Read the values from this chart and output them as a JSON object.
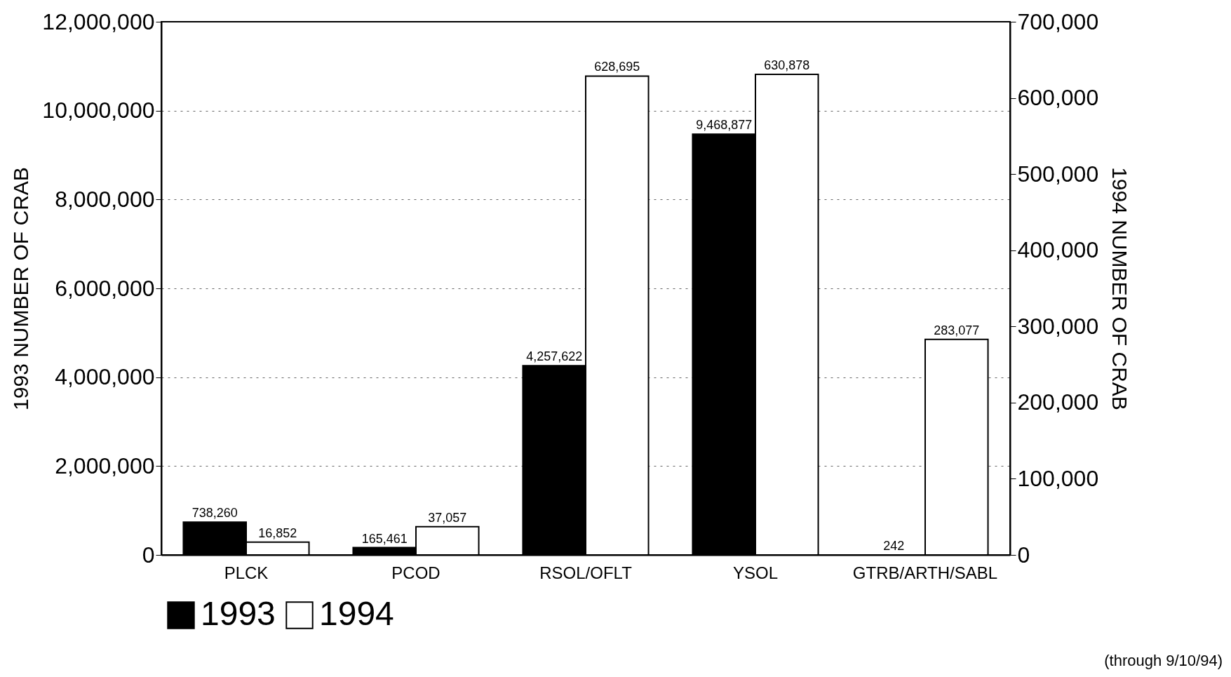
{
  "chart_data": {
    "type": "bar",
    "categories": [
      "PLCK",
      "PCOD",
      "RSOL/OFLT",
      "YSOL",
      "GTRB/ARTH/SABL"
    ],
    "series": [
      {
        "name": "1993",
        "color": "#000000",
        "values": [
          738260,
          165461,
          4257622,
          9468877,
          242
        ],
        "value_labels": [
          "738,260",
          "165,461",
          "4,257,622",
          "9,468,877",
          "242"
        ]
      },
      {
        "name": "1994",
        "color": "#ffffff",
        "values": [
          16852,
          37057,
          628695,
          630878,
          283077
        ],
        "value_labels": [
          "16,852",
          "37,057",
          "628,695",
          "630,878",
          "283,077"
        ],
        "axis": "y2"
      }
    ],
    "ylabel": "1993 NUMBER OF CRAB",
    "y2label": "1994 NUMBER OF CRAB",
    "ylim": [
      0,
      12000000
    ],
    "yticks": [
      0,
      {
        "value": 2000000,
        "label": "2,000,000"
      },
      {
        "value": 4000000,
        "label": "4,000,000"
      },
      {
        "value": 6000000,
        "label": "6,000,000"
      },
      {
        "value": 8000000,
        "label": "8,000,000"
      },
      {
        "value": 10000000,
        "label": "10,000,000"
      },
      {
        "value": 12000000,
        "label": "12,000,000"
      }
    ],
    "y2lim": [
      0,
      700000
    ],
    "y2ticks": [
      0,
      {
        "value": 100000,
        "label": "100,000"
      },
      {
        "value": 200000,
        "label": "200,000"
      },
      {
        "value": 300000,
        "label": "300,000"
      },
      {
        "value": 400000,
        "label": "400,000"
      },
      {
        "value": 500000,
        "label": "500,000"
      },
      {
        "value": 600000,
        "label": "600,000"
      },
      {
        "value": 700000,
        "label": "700,000"
      }
    ],
    "grid": "y",
    "legend": "bottom",
    "annotations": [
      "(through 9/10/94)"
    ]
  }
}
